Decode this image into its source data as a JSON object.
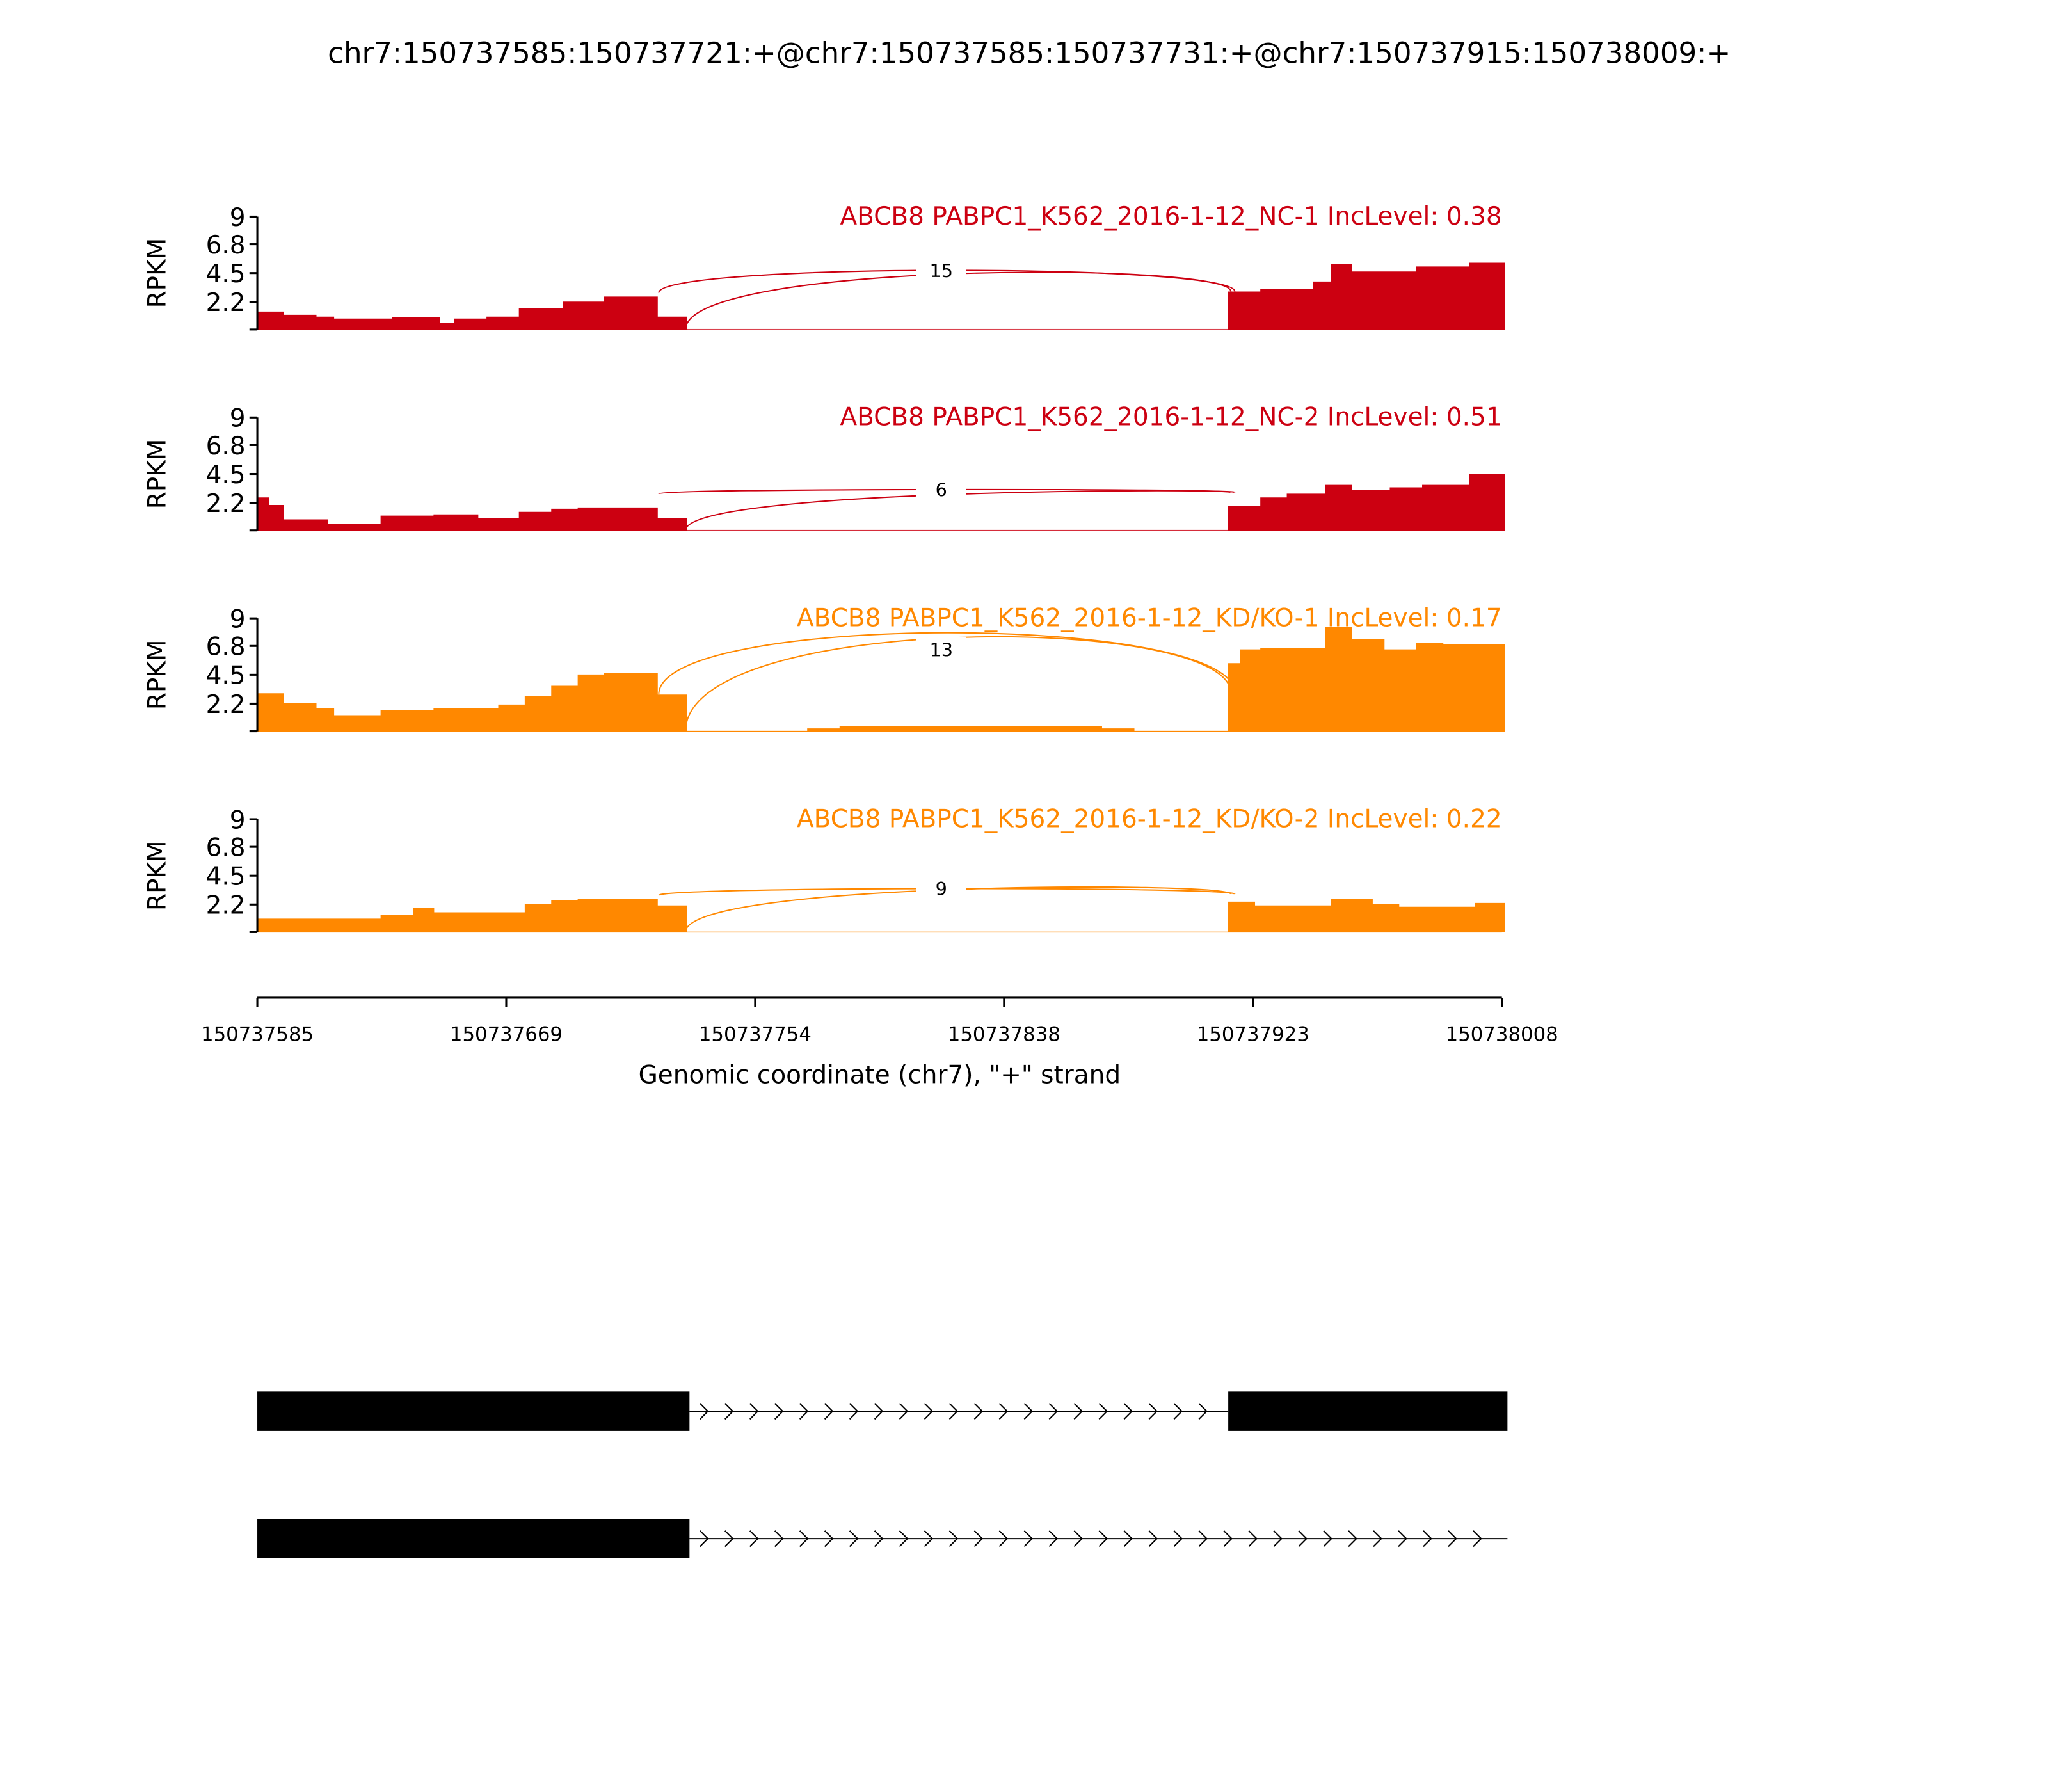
{
  "chart_data": {
    "type": "area",
    "title": "chr7:150737585:150737721:+@chr7:150737585:150737731:+@chr7:150737915:150738009:+",
    "xlabel": "Genomic coordinate (chr7), \"+\" strand",
    "ylabel": "RPKM",
    "xlim": [
      150737585,
      150738008
    ],
    "xticks": [
      "150737585",
      "150737669",
      "150737754",
      "150737838",
      "150737923",
      "150738008"
    ],
    "ylim": [
      0,
      9
    ],
    "yticks": [
      "9",
      "6.8",
      "4.5",
      "2.2"
    ],
    "yticks_values": [
      9,
      6.8,
      4.5,
      2.2
    ],
    "grid": false,
    "samples": [
      {
        "name": "ABCB8 PABPC1_K562_2016-1-12_NC-1 IncLevel: 0.38",
        "color": "#cc0011",
        "junction_labels": [
          "15"
        ],
        "coverage": [
          [
            150737585,
            1.4
          ],
          [
            150737594,
            1.15
          ],
          [
            150737605,
            1.0
          ],
          [
            150737611,
            0.85
          ],
          [
            150737631,
            0.95
          ],
          [
            150737647,
            0.5
          ],
          [
            150737652,
            0.85
          ],
          [
            150737663,
            1.0
          ],
          [
            150737674,
            1.7
          ],
          [
            150737689,
            2.2
          ],
          [
            150737703,
            2.6
          ],
          [
            150737721,
            1.0
          ],
          [
            150737731,
            0
          ],
          [
            150737915,
            3.0
          ],
          [
            150737926,
            3.2
          ],
          [
            150737944,
            3.8
          ],
          [
            150737950,
            5.2
          ],
          [
            150737957,
            4.6
          ],
          [
            150737979,
            5.0
          ],
          [
            150737997,
            5.3
          ],
          [
            150738009,
            0
          ]
        ]
      },
      {
        "name": "ABCB8 PABPC1_K562_2016-1-12_NC-2 IncLevel: 0.51",
        "color": "#cc0011",
        "junction_labels": [
          "6"
        ],
        "coverage": [
          [
            150737585,
            2.6
          ],
          [
            150737589,
            2.0
          ],
          [
            150737594,
            0.85
          ],
          [
            150737609,
            0.5
          ],
          [
            150737627,
            1.15
          ],
          [
            150737645,
            1.25
          ],
          [
            150737660,
            0.95
          ],
          [
            150737674,
            1.45
          ],
          [
            150737685,
            1.7
          ],
          [
            150737694,
            1.8
          ],
          [
            150737721,
            0.95
          ],
          [
            150737731,
            0
          ],
          [
            150737915,
            1.9
          ],
          [
            150737926,
            2.6
          ],
          [
            150737935,
            2.9
          ],
          [
            150737948,
            3.6
          ],
          [
            150737957,
            3.2
          ],
          [
            150737970,
            3.4
          ],
          [
            150737981,
            3.6
          ],
          [
            150737997,
            4.5
          ],
          [
            150738009,
            0
          ]
        ]
      },
      {
        "name": "ABCB8 PABPC1_K562_2016-1-12_KD/KO-1 IncLevel: 0.17",
        "color": "#ff8800",
        "junction_labels": [
          "13"
        ],
        "coverage": [
          [
            150737585,
            3.0
          ],
          [
            150737594,
            2.2
          ],
          [
            150737605,
            1.8
          ],
          [
            150737611,
            1.25
          ],
          [
            150737627,
            1.65
          ],
          [
            150737645,
            1.8
          ],
          [
            150737667,
            2.1
          ],
          [
            150737676,
            2.8
          ],
          [
            150737685,
            3.6
          ],
          [
            150737694,
            4.5
          ],
          [
            150737703,
            4.6
          ],
          [
            150737721,
            2.9
          ],
          [
            150737731,
            0
          ],
          [
            150737772,
            0.2
          ],
          [
            150737783,
            0.4
          ],
          [
            150737872,
            0.2
          ],
          [
            150737883,
            0
          ],
          [
            150737915,
            5.4
          ],
          [
            150737919,
            6.5
          ],
          [
            150737926,
            6.6
          ],
          [
            150737948,
            8.3
          ],
          [
            150737957,
            7.3
          ],
          [
            150737968,
            6.5
          ],
          [
            150737979,
            7.0
          ],
          [
            150737988,
            6.9
          ],
          [
            150738009,
            0
          ]
        ]
      },
      {
        "name": "ABCB8 PABPC1_K562_2016-1-12_KD/KO-2 IncLevel: 0.22",
        "color": "#ff8800",
        "junction_labels": [
          "9"
        ],
        "coverage": [
          [
            150737585,
            1.05
          ],
          [
            150737627,
            1.35
          ],
          [
            150737638,
            1.9
          ],
          [
            150737645,
            1.55
          ],
          [
            150737676,
            2.2
          ],
          [
            150737685,
            2.5
          ],
          [
            150737694,
            2.6
          ],
          [
            150737721,
            2.1
          ],
          [
            150737731,
            0
          ],
          [
            150737915,
            2.4
          ],
          [
            150737924,
            2.1
          ],
          [
            150737950,
            2.6
          ],
          [
            150737964,
            2.2
          ],
          [
            150737973,
            2.0
          ],
          [
            150737999,
            2.3
          ],
          [
            150738009,
            0
          ]
        ]
      }
    ],
    "junctions": [
      [
        150737721,
        150737915
      ],
      [
        150737731,
        150737915
      ]
    ],
    "isoforms": [
      {
        "exons": [
          [
            150737585,
            150737731
          ],
          [
            150737915,
            150738009
          ]
        ]
      },
      {
        "exons": [
          [
            150737585,
            150737731
          ]
        ],
        "intron_to": 150738009
      }
    ]
  }
}
